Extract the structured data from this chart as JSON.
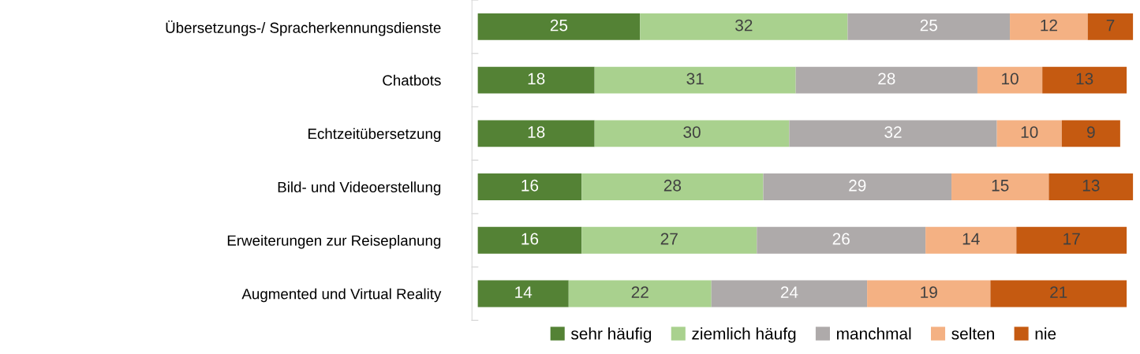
{
  "chart_data": {
    "type": "bar",
    "orientation": "horizontal",
    "stacked": true,
    "data_labels": true,
    "legend": "bottom",
    "categories": [
      "Übersetzungs-/ Spracherkennungsdienste",
      "Chatbots",
      "Echtzeitübersetzung",
      "Bild- und Videoerstellung",
      "Erweiterungen zur Reiseplanung",
      "Augmented und Virtual Reality"
    ],
    "series": [
      {
        "name": "sehr häufig",
        "color": "#548235",
        "values": [
          25,
          18,
          18,
          16,
          16,
          14
        ]
      },
      {
        "name": "ziemlich häufg",
        "color": "#a9d18e",
        "values": [
          32,
          31,
          30,
          28,
          27,
          22
        ]
      },
      {
        "name": "manchmal",
        "color": "#aeaaaa",
        "values": [
          25,
          28,
          32,
          29,
          26,
          24
        ]
      },
      {
        "name": "selten",
        "color": "#f4b183",
        "values": [
          12,
          10,
          10,
          15,
          14,
          19
        ]
      },
      {
        "name": "nie",
        "color": "#c55a11",
        "values": [
          7,
          13,
          9,
          13,
          17,
          21
        ]
      }
    ]
  }
}
